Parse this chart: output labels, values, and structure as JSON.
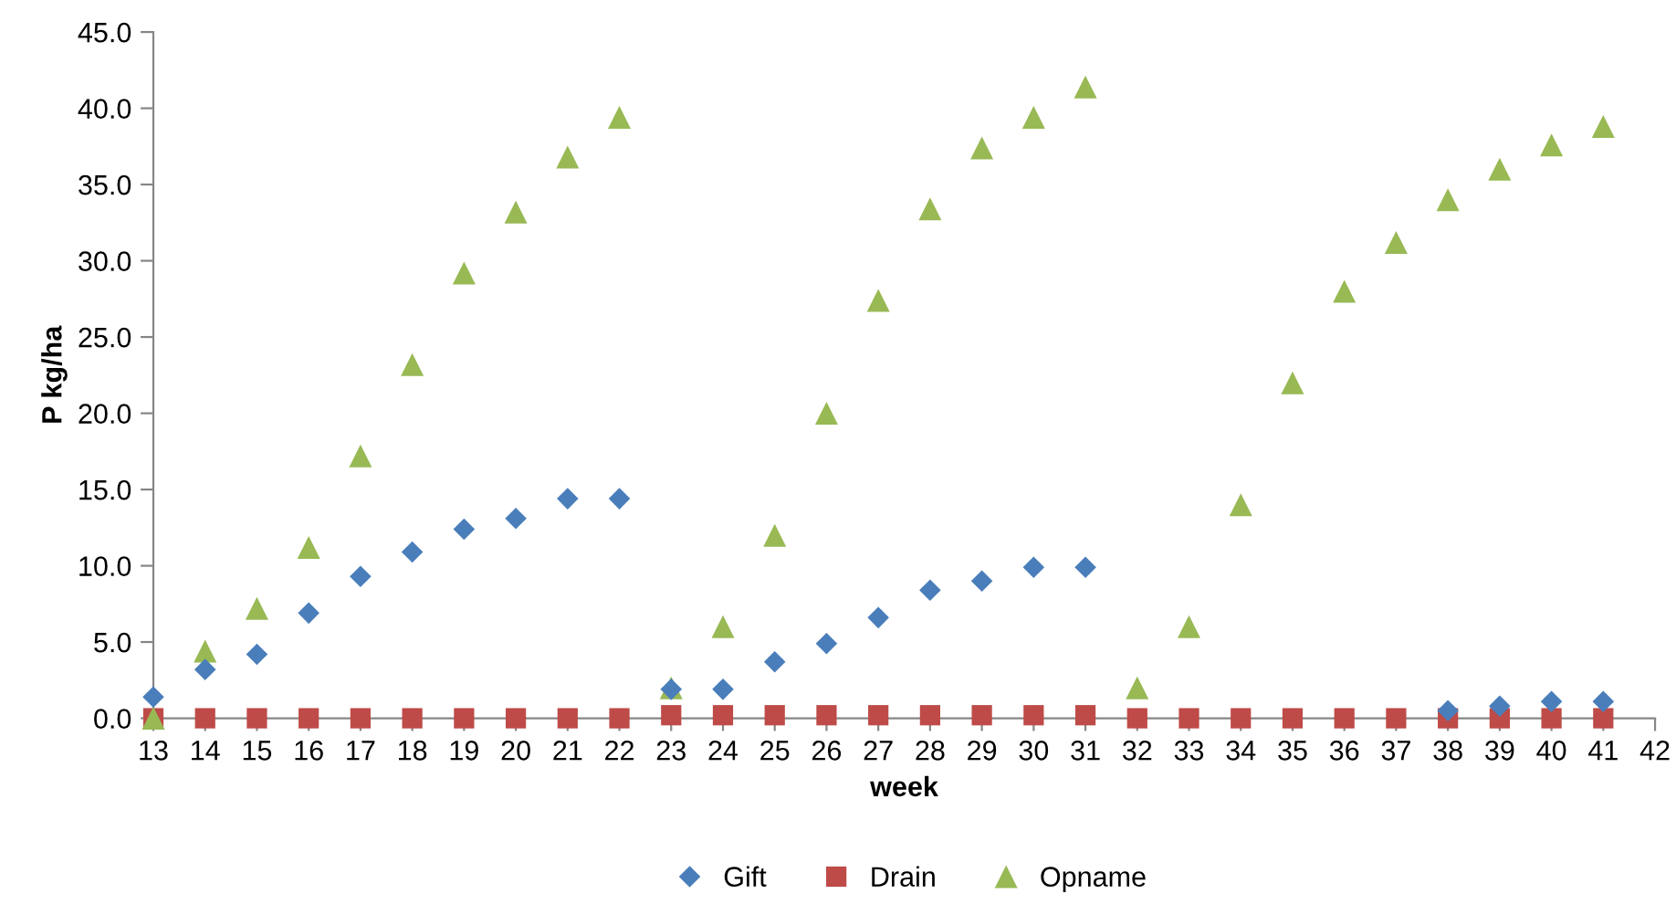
{
  "chart_data": {
    "type": "scatter",
    "xlabel": "week",
    "ylabel": "P kg/ha",
    "x": [
      13,
      14,
      15,
      16,
      17,
      18,
      19,
      20,
      21,
      22,
      23,
      24,
      25,
      26,
      27,
      28,
      29,
      30,
      31,
      32,
      33,
      34,
      35,
      36,
      37,
      38,
      39,
      40,
      41
    ],
    "series": [
      {
        "name": "Gift",
        "color": "#4a7ebb",
        "marker": "diamond",
        "values": [
          1.4,
          3.2,
          4.2,
          6.9,
          9.3,
          10.9,
          12.4,
          13.1,
          14.4,
          14.4,
          1.9,
          1.9,
          3.7,
          4.9,
          6.6,
          8.4,
          9.0,
          9.9,
          9.9,
          null,
          null,
          null,
          null,
          null,
          null,
          0.5,
          0.8,
          1.1,
          1.1
        ]
      },
      {
        "name": "Drain",
        "color": "#be4b48",
        "marker": "square",
        "values": [
          0,
          0,
          0,
          0,
          0,
          0,
          0,
          0,
          0,
          0,
          0.2,
          0.2,
          0.2,
          0.2,
          0.2,
          0.2,
          0.2,
          0.2,
          0.2,
          0,
          0,
          0,
          0,
          0,
          0,
          0,
          0,
          0,
          0
        ]
      },
      {
        "name": "Opname",
        "color": "#98b954",
        "marker": "triangle",
        "values": [
          0,
          4.4,
          7.2,
          11.2,
          17.2,
          23.2,
          29.2,
          33.2,
          36.8,
          39.4,
          2.0,
          6.0,
          12.0,
          20.0,
          27.4,
          33.4,
          37.4,
          39.4,
          41.4,
          2.0,
          6.0,
          14.0,
          22.0,
          28.0,
          31.2,
          34.0,
          36.0,
          37.6,
          38.8
        ]
      }
    ],
    "xlim": [
      13,
      42
    ],
    "xticks": [
      13,
      14,
      15,
      16,
      17,
      18,
      19,
      20,
      21,
      22,
      23,
      24,
      25,
      26,
      27,
      28,
      29,
      30,
      31,
      32,
      33,
      34,
      35,
      36,
      37,
      38,
      39,
      40,
      41,
      42
    ],
    "ylim": [
      0,
      45
    ],
    "yticks": [
      {
        "value": 0,
        "label": "0.0"
      },
      {
        "value": 5,
        "label": "5.0"
      },
      {
        "value": 10,
        "label": "10.0"
      },
      {
        "value": 15,
        "label": "15.0"
      },
      {
        "value": 20,
        "label": "20.0"
      },
      {
        "value": 25,
        "label": "25.0"
      },
      {
        "value": 30,
        "label": "30.0"
      },
      {
        "value": 35,
        "label": "35.0"
      },
      {
        "value": 40,
        "label": "40.0"
      },
      {
        "value": 45,
        "label": "45.0"
      }
    ],
    "grid": false,
    "legend": "bottom"
  }
}
